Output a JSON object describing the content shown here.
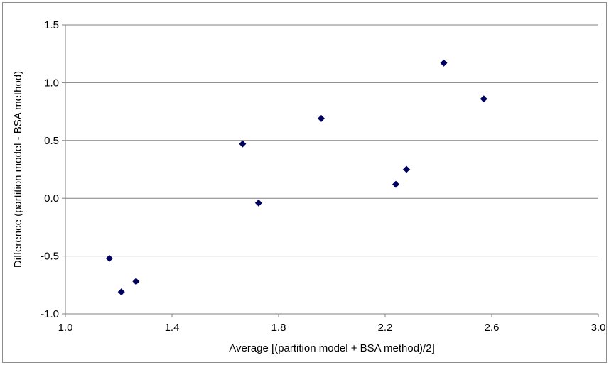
{
  "chart_data": {
    "type": "scatter",
    "xlabel": "Average [(partition model + BSA method)/2]",
    "ylabel": "Difference (partition model - BSA method)",
    "xlim": [
      1.0,
      3.0
    ],
    "ylim": [
      -1.0,
      1.5
    ],
    "x_ticks": [
      "1.0",
      "1.4",
      "1.8",
      "2.2",
      "2.6",
      "3.0"
    ],
    "y_ticks": [
      "-1.0",
      "-0.5",
      "0.0",
      "0.5",
      "1.0",
      "1.5"
    ],
    "grid": "horizontal",
    "marker": "diamond",
    "marker_color": "#00005e",
    "points": [
      {
        "x": 1.165,
        "y": -0.52
      },
      {
        "x": 1.21,
        "y": -0.81
      },
      {
        "x": 1.265,
        "y": -0.72
      },
      {
        "x": 1.665,
        "y": 0.47
      },
      {
        "x": 1.725,
        "y": -0.04
      },
      {
        "x": 1.96,
        "y": 0.69
      },
      {
        "x": 2.24,
        "y": 0.12
      },
      {
        "x": 2.28,
        "y": 0.25
      },
      {
        "x": 2.42,
        "y": 1.17
      },
      {
        "x": 2.57,
        "y": 0.86
      }
    ]
  }
}
